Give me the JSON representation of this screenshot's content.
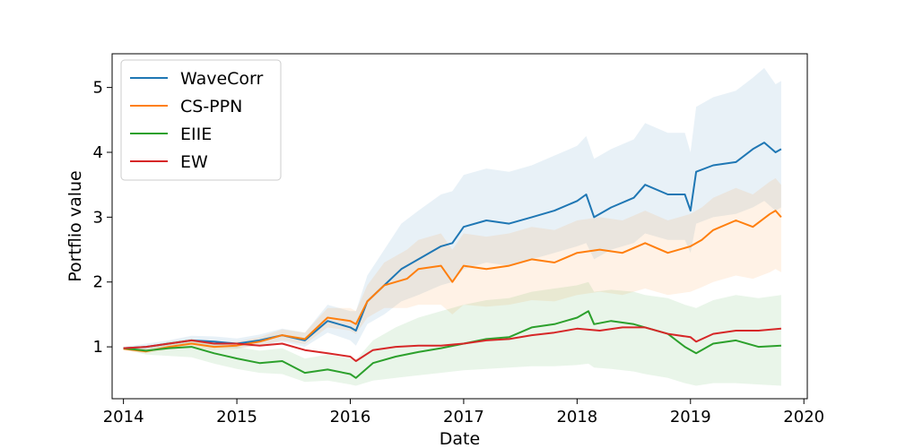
{
  "chart_data": {
    "type": "line",
    "xlabel": "Date",
    "ylabel": "Portflio value",
    "xlim": [
      2013.9,
      2020.03
    ],
    "ylim": [
      0.2,
      5.52
    ],
    "x_ticks": [
      2014,
      2015,
      2016,
      2017,
      2018,
      2019,
      2020
    ],
    "y_ticks": [
      1,
      2,
      3,
      4,
      5
    ],
    "grid": false,
    "legend_position": "upper-left",
    "series": [
      {
        "name": "WaveCorr",
        "color": "#1f77b4",
        "band_opacity": 0.1,
        "x": [
          2014.0,
          2014.2,
          2014.4,
          2014.6,
          2014.8,
          2015.0,
          2015.2,
          2015.4,
          2015.6,
          2015.8,
          2016.0,
          2016.05,
          2016.15,
          2016.3,
          2016.45,
          2016.6,
          2016.8,
          2016.9,
          2017.0,
          2017.2,
          2017.4,
          2017.6,
          2017.8,
          2018.0,
          2018.08,
          2018.15,
          2018.3,
          2018.5,
          2018.6,
          2018.8,
          2018.95,
          2019.0,
          2019.05,
          2019.2,
          2019.4,
          2019.55,
          2019.65,
          2019.75,
          2019.8
        ],
        "y": [
          0.98,
          1.0,
          1.05,
          1.1,
          1.08,
          1.05,
          1.1,
          1.18,
          1.1,
          1.4,
          1.3,
          1.25,
          1.7,
          1.95,
          2.2,
          2.35,
          2.55,
          2.6,
          2.85,
          2.95,
          2.9,
          3.0,
          3.1,
          3.25,
          3.35,
          3.0,
          3.15,
          3.3,
          3.5,
          3.35,
          3.35,
          3.1,
          3.7,
          3.8,
          3.85,
          4.05,
          4.15,
          4.0,
          4.05
        ],
        "band_lower": [
          0.96,
          0.96,
          1.0,
          1.04,
          1.0,
          0.98,
          1.02,
          1.08,
          1.0,
          1.22,
          1.1,
          1.02,
          1.35,
          1.5,
          1.7,
          1.8,
          1.95,
          2.0,
          2.2,
          2.3,
          2.25,
          2.35,
          2.45,
          2.55,
          2.6,
          2.35,
          2.5,
          2.6,
          2.75,
          2.65,
          2.65,
          2.45,
          2.9,
          3.0,
          3.05,
          3.15,
          3.25,
          3.1,
          3.15
        ],
        "band_upper": [
          1.0,
          1.05,
          1.1,
          1.17,
          1.16,
          1.13,
          1.19,
          1.28,
          1.22,
          1.65,
          1.55,
          1.55,
          2.1,
          2.5,
          2.9,
          3.1,
          3.35,
          3.4,
          3.65,
          3.75,
          3.7,
          3.8,
          3.95,
          4.1,
          4.25,
          3.9,
          4.05,
          4.2,
          4.45,
          4.3,
          4.3,
          4.0,
          4.7,
          4.85,
          4.95,
          5.15,
          5.3,
          5.05,
          5.1
        ]
      },
      {
        "name": "CS-PPN",
        "color": "#ff7f0e",
        "band_opacity": 0.1,
        "x": [
          2014.0,
          2014.2,
          2014.4,
          2014.6,
          2014.8,
          2015.0,
          2015.2,
          2015.4,
          2015.6,
          2015.8,
          2016.0,
          2016.05,
          2016.15,
          2016.3,
          2016.5,
          2016.6,
          2016.8,
          2016.9,
          2017.0,
          2017.2,
          2017.4,
          2017.6,
          2017.8,
          2018.0,
          2018.2,
          2018.4,
          2018.6,
          2018.8,
          2019.0,
          2019.1,
          2019.2,
          2019.4,
          2019.55,
          2019.7,
          2019.75,
          2019.8
        ],
        "y": [
          0.97,
          0.93,
          1.0,
          1.05,
          1.0,
          1.02,
          1.08,
          1.18,
          1.12,
          1.45,
          1.4,
          1.35,
          1.7,
          1.95,
          2.05,
          2.2,
          2.25,
          2.0,
          2.25,
          2.2,
          2.25,
          2.35,
          2.3,
          2.45,
          2.5,
          2.45,
          2.6,
          2.45,
          2.55,
          2.65,
          2.8,
          2.95,
          2.85,
          3.05,
          3.1,
          3.0
        ],
        "band_lower": [
          0.95,
          0.9,
          0.96,
          1.0,
          0.95,
          0.97,
          1.02,
          1.1,
          1.04,
          1.3,
          1.25,
          1.2,
          1.45,
          1.6,
          1.6,
          1.65,
          1.65,
          1.5,
          1.65,
          1.62,
          1.65,
          1.72,
          1.7,
          1.8,
          1.85,
          1.8,
          1.9,
          1.8,
          1.85,
          1.92,
          2.0,
          2.1,
          2.05,
          2.15,
          2.2,
          2.15
        ],
        "band_upper": [
          0.99,
          0.97,
          1.05,
          1.1,
          1.06,
          1.08,
          1.15,
          1.27,
          1.22,
          1.6,
          1.6,
          1.55,
          1.95,
          2.3,
          2.5,
          2.65,
          2.75,
          2.5,
          2.75,
          2.7,
          2.75,
          2.85,
          2.8,
          2.95,
          3.0,
          2.95,
          3.1,
          2.95,
          3.05,
          3.15,
          3.3,
          3.45,
          3.35,
          3.55,
          3.6,
          3.5
        ]
      },
      {
        "name": "EIIE",
        "color": "#2ca02c",
        "band_opacity": 0.1,
        "x": [
          2014.0,
          2014.2,
          2014.4,
          2014.6,
          2014.8,
          2015.0,
          2015.2,
          2015.4,
          2015.6,
          2015.8,
          2016.0,
          2016.05,
          2016.2,
          2016.4,
          2016.6,
          2016.8,
          2017.0,
          2017.2,
          2017.4,
          2017.6,
          2017.8,
          2018.0,
          2018.1,
          2018.15,
          2018.3,
          2018.5,
          2018.6,
          2018.8,
          2018.95,
          2019.05,
          2019.2,
          2019.4,
          2019.6,
          2019.8
        ],
        "y": [
          0.98,
          0.94,
          0.98,
          1.0,
          0.9,
          0.82,
          0.75,
          0.78,
          0.6,
          0.65,
          0.58,
          0.52,
          0.75,
          0.85,
          0.92,
          0.98,
          1.05,
          1.12,
          1.15,
          1.3,
          1.35,
          1.45,
          1.55,
          1.35,
          1.4,
          1.35,
          1.3,
          1.2,
          1.0,
          0.9,
          1.05,
          1.1,
          1.0,
          1.02
        ],
        "band_lower": [
          0.96,
          0.88,
          0.86,
          0.84,
          0.74,
          0.66,
          0.6,
          0.58,
          0.46,
          0.48,
          0.42,
          0.4,
          0.48,
          0.52,
          0.56,
          0.6,
          0.64,
          0.66,
          0.68,
          0.7,
          0.7,
          0.72,
          0.74,
          0.68,
          0.66,
          0.62,
          0.58,
          0.52,
          0.44,
          0.4,
          0.44,
          0.44,
          0.42,
          0.4
        ],
        "band_upper": [
          1.0,
          1.0,
          1.08,
          1.12,
          1.06,
          1.0,
          0.94,
          0.98,
          0.82,
          0.88,
          0.82,
          0.8,
          1.1,
          1.3,
          1.45,
          1.55,
          1.65,
          1.72,
          1.75,
          1.85,
          1.9,
          1.95,
          2.0,
          1.85,
          1.88,
          1.85,
          1.8,
          1.75,
          1.65,
          1.6,
          1.72,
          1.8,
          1.75,
          1.8
        ]
      },
      {
        "name": "EW",
        "color": "#d62728",
        "x": [
          2014.0,
          2014.2,
          2014.4,
          2014.6,
          2014.8,
          2015.0,
          2015.2,
          2015.4,
          2015.6,
          2015.8,
          2016.0,
          2016.05,
          2016.2,
          2016.4,
          2016.6,
          2016.8,
          2017.0,
          2017.2,
          2017.4,
          2017.6,
          2017.8,
          2018.0,
          2018.2,
          2018.4,
          2018.6,
          2018.8,
          2019.0,
          2019.05,
          2019.2,
          2019.4,
          2019.6,
          2019.8
        ],
        "y": [
          0.98,
          1.0,
          1.05,
          1.1,
          1.05,
          1.05,
          1.02,
          1.05,
          0.95,
          0.9,
          0.85,
          0.78,
          0.95,
          1.0,
          1.02,
          1.02,
          1.05,
          1.1,
          1.12,
          1.18,
          1.22,
          1.28,
          1.25,
          1.3,
          1.3,
          1.2,
          1.15,
          1.08,
          1.2,
          1.25,
          1.25,
          1.28
        ]
      }
    ]
  }
}
